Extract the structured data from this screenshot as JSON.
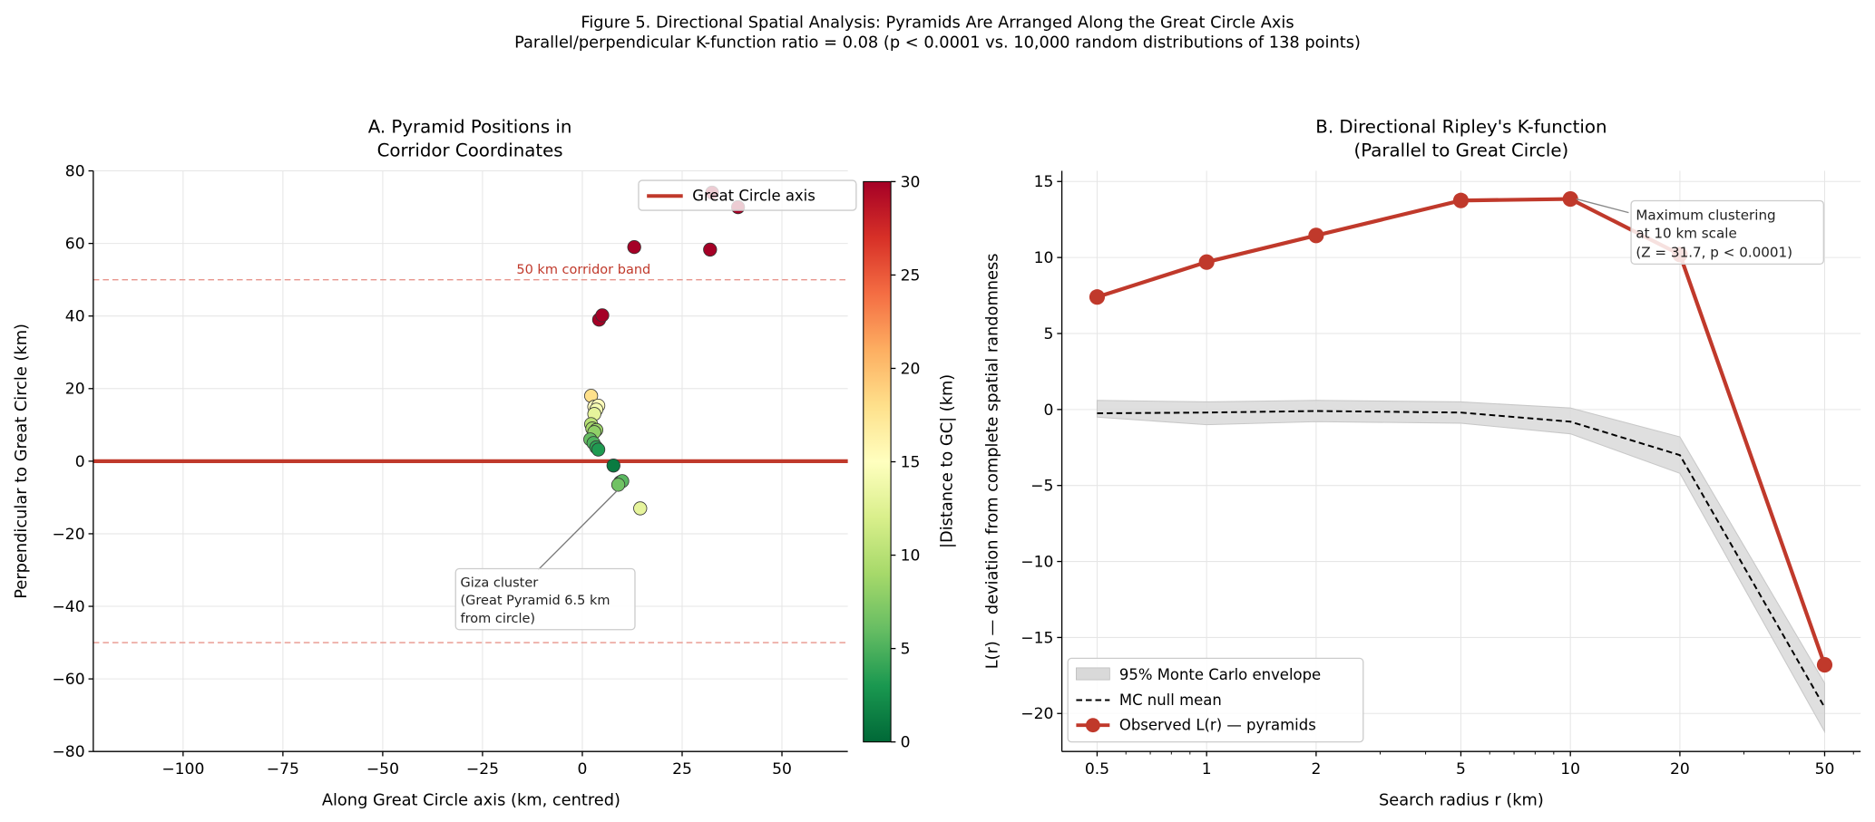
{
  "figure": {
    "title": "Figure 5. Directional Spatial Analysis: Pyramids Are Arranged Along the Great Circle Axis",
    "subtitle": "Parallel/perpendicular K-function ratio = 0.08 (p < 0.0001 vs. 10,000 random distributions of 138 points)"
  },
  "colors": {
    "great_circle": "#c0392b",
    "corridor": "#e8958c",
    "envelope": "#d9d9d9",
    "mc_mean": "#000000",
    "observed": "#c0392b"
  },
  "chart_data": [
    {
      "type": "scatter",
      "title_lines": [
        "A. Pyramid Positions in",
        "Corridor Coordinates"
      ],
      "xlabel": "Along Great Circle axis (km, centred)",
      "ylabel": "Perpendicular to Great Circle (km)",
      "xlim": [
        -122.5,
        66.5
      ],
      "ylim": [
        -80,
        80
      ],
      "xticks": [
        -100,
        -75,
        -50,
        -25,
        0,
        25,
        50
      ],
      "xtick_labels": [
        "−100",
        "−75",
        "−50",
        "−25",
        "0",
        "25",
        "50"
      ],
      "yticks": [
        -80,
        -60,
        -40,
        -20,
        0,
        20,
        40,
        60,
        80
      ],
      "ytick_labels": [
        "−80",
        "−60",
        "−40",
        "−20",
        "0",
        "20",
        "40",
        "60",
        "80"
      ],
      "grid": true,
      "legend": {
        "position": "upper right",
        "entries": [
          "Great Circle axis"
        ]
      },
      "great_circle_y": 0,
      "corridor_band": [
        -50,
        50
      ],
      "corridor_label": "50 km corridor band",
      "colormap": "RdYlGn_r",
      "colorbar": {
        "label": "|Distance to GC| (km)",
        "range": [
          0,
          30
        ],
        "ticks": [
          "0",
          "5",
          "10",
          "15",
          "20",
          "25",
          "30"
        ]
      },
      "annotation": {
        "lines": [
          "Giza cluster",
          "(Great Pyramid 6.5 km",
          "from circle)"
        ],
        "target": [
          9,
          -6.5
        ]
      },
      "points": [
        {
          "x": 13,
          "y": 59
        },
        {
          "x": 32,
          "y": 58.3
        },
        {
          "x": 32.5,
          "y": 74
        },
        {
          "x": 39,
          "y": 70
        },
        {
          "x": 4.2,
          "y": 39
        },
        {
          "x": 5,
          "y": 40.2
        },
        {
          "x": 2.2,
          "y": 18
        },
        {
          "x": 3,
          "y": 15
        },
        {
          "x": 4,
          "y": 15.3
        },
        {
          "x": 3.5,
          "y": 14.2
        },
        {
          "x": 3,
          "y": 13
        },
        {
          "x": 2.2,
          "y": 10.2
        },
        {
          "x": 2.5,
          "y": 9
        },
        {
          "x": 3.5,
          "y": 8.6
        },
        {
          "x": 3,
          "y": 8
        },
        {
          "x": 2,
          "y": 6
        },
        {
          "x": 2.8,
          "y": 5
        },
        {
          "x": 3.5,
          "y": 3.8
        },
        {
          "x": 4,
          "y": 3.2
        },
        {
          "x": 7.8,
          "y": -1.2
        },
        {
          "x": 9.5,
          "y": -5.8
        },
        {
          "x": 10,
          "y": -5.5
        },
        {
          "x": 9,
          "y": -6.5
        },
        {
          "x": 14.5,
          "y": -13
        }
      ]
    },
    {
      "type": "line",
      "title_lines": [
        "B. Directional Ripley's K-function",
        "(Parallel to Great Circle)"
      ],
      "xlabel": "Search radius r (km)",
      "ylabel": "L(r) — deviation from complete spatial randomness",
      "xscale": "log",
      "xlim": [
        0.4,
        62.8
      ],
      "ylim": [
        -22.5,
        15.7
      ],
      "xticks": [
        0.5,
        1,
        2,
        5,
        10,
        20,
        50
      ],
      "xtick_labels": [
        "0.5",
        "1",
        "2",
        "5",
        "10",
        "20",
        "50"
      ],
      "yticks": [
        -20,
        -15,
        -10,
        -5,
        0,
        5,
        10,
        15
      ],
      "ytick_labels": [
        "−20",
        "−15",
        "−10",
        "−5",
        "0",
        "5",
        "10",
        "15"
      ],
      "grid": true,
      "legend": {
        "position": "lower left"
      },
      "x": [
        0.5,
        1,
        2,
        5,
        10,
        20,
        50
      ],
      "series": [
        {
          "name": "95% Monte Carlo envelope",
          "upper": [
            0.6,
            0.5,
            0.6,
            0.5,
            0.1,
            -1.8,
            -18
          ],
          "lower": [
            -0.5,
            -1,
            -0.8,
            -0.9,
            -1.6,
            -4.2,
            -21.2
          ]
        },
        {
          "name": "MC null mean",
          "values": [
            -0.25,
            -0.2,
            -0.1,
            -0.2,
            -0.8,
            -3,
            -19.6
          ]
        },
        {
          "name": "Observed L(r) — pyramids",
          "values": [
            7.4,
            9.7,
            11.45,
            13.75,
            13.85,
            10.2,
            -16.8
          ]
        }
      ],
      "annotation": {
        "lines": [
          "Maximum clustering",
          "at 10 km scale",
          "(Z = 31.7, p < 0.0001)"
        ],
        "target": [
          10,
          13.85
        ]
      }
    }
  ]
}
